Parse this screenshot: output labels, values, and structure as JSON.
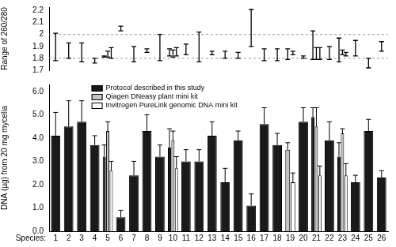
{
  "chart_data": [
    {
      "type": "range",
      "ylabel": "Range of 260/280",
      "categories": [
        null,
        null,
        null,
        null,
        null,
        null,
        null,
        null,
        null,
        null,
        null,
        null,
        null,
        null,
        null,
        null,
        null,
        null,
        null,
        null,
        null,
        null,
        null,
        null,
        null,
        null
      ],
      "series": [
        {
          "color": "#000000",
          "ranges": [
            [
              1.78,
              2.01
            ],
            [
              1.8,
              1.93
            ],
            [
              1.77,
              1.93
            ],
            [
              1.76,
              1.8
            ],
            [
              1.81,
              1.82
            ],
            [
              2.03,
              2.07
            ],
            [
              1.77,
              1.9
            ],
            [
              1.85,
              1.88
            ],
            [
              1.78,
              2.0
            ],
            [
              1.82,
              1.88
            ],
            [
              1.83,
              1.92
            ],
            [
              1.77,
              2.02
            ],
            [
              1.83,
              1.86
            ],
            [
              1.8,
              1.86
            ],
            [
              1.8,
              1.85
            ],
            [
              1.9,
              2.21
            ],
            [
              1.78,
              1.88
            ],
            [
              1.78,
              1.88
            ],
            null,
            [
              1.8,
              1.82
            ],
            [
              1.79,
              2.03
            ],
            [
              1.79,
              1.9
            ],
            [
              1.77,
              1.97
            ],
            [
              1.82,
              1.95
            ],
            [
              1.72,
              1.8
            ],
            [
              1.86,
              1.94
            ]
          ]
        },
        {
          "color": "#000000",
          "ranges": [
            null,
            null,
            null,
            null,
            [
              1.81,
              1.86
            ],
            null,
            null,
            null,
            null,
            [
              1.81,
              1.87
            ],
            null,
            null,
            null,
            null,
            null,
            null,
            null,
            null,
            [
              1.79,
              1.88
            ],
            null,
            [
              1.79,
              1.89
            ],
            null,
            [
              1.83,
              1.87
            ],
            null,
            null,
            null
          ]
        },
        {
          "color": "#000000",
          "ranges": [
            null,
            null,
            null,
            null,
            [
              1.8,
              1.89
            ],
            null,
            null,
            null,
            null,
            [
              1.82,
              1.89
            ],
            null,
            null,
            null,
            null,
            null,
            null,
            null,
            null,
            [
              1.83,
              1.86
            ],
            null,
            [
              1.79,
              1.89
            ],
            null,
            [
              1.82,
              1.85
            ],
            null,
            null,
            null
          ]
        }
      ],
      "reference_lines": [
        1.8,
        2.0
      ],
      "ylim": [
        1.7,
        2.23
      ],
      "yticks": [
        1.7,
        1.8,
        1.9,
        2.0,
        2.1,
        2.2
      ],
      "grid": false,
      "tick_labels": "y"
    },
    {
      "type": "bar",
      "xlabel": "Species:",
      "ylabel": "DNA (µg) from 20 mg mycelia",
      "categories": [
        "1",
        "2",
        "3",
        "4",
        "5",
        "6",
        "7",
        "8",
        "9",
        "10",
        "11",
        "12",
        "13",
        "14",
        "15",
        "16",
        "17",
        "18",
        "19",
        "20",
        "21",
        "22",
        "23",
        "24",
        "25",
        "26"
      ],
      "series": [
        {
          "name": "Protocol described in this study",
          "color": "#1a1a1a",
          "values": [
            4.1,
            4.5,
            4.7,
            3.7,
            3.2,
            0.6,
            2.4,
            4.3,
            3.2,
            3.6,
            3.0,
            3.0,
            4.1,
            2.1,
            3.9,
            1.1,
            4.6,
            3.7,
            null,
            4.7,
            4.9,
            3.9,
            3.2,
            2.1,
            4.3,
            2.3
          ],
          "errors": [
            1.0,
            1.1,
            0.9,
            0.4,
            0.5,
            0.3,
            0.6,
            0.7,
            0.5,
            0.8,
            0.5,
            0.5,
            0.6,
            0.6,
            0.4,
            0.5,
            0.7,
            0.5,
            null,
            0.6,
            0.4,
            0.8,
            0.6,
            0.3,
            0.5,
            0.3
          ]
        },
        {
          "name": "Qiagen DNeasy plant mini kit",
          "color": "#c4c4c4",
          "values": [
            null,
            null,
            null,
            null,
            4.3,
            null,
            null,
            null,
            null,
            3.9,
            null,
            null,
            null,
            null,
            null,
            null,
            null,
            null,
            3.5,
            null,
            4.5,
            null,
            4.2,
            null,
            null,
            null
          ],
          "errors": [
            null,
            null,
            null,
            null,
            0.4,
            null,
            null,
            null,
            null,
            0.4,
            null,
            null,
            null,
            null,
            null,
            null,
            null,
            null,
            0.3,
            null,
            0.8,
            null,
            0.2,
            null,
            null,
            null
          ]
        },
        {
          "name": "Invitrogen PureLink genomic DNA mini kit",
          "color": "#ffffff",
          "values": [
            null,
            null,
            null,
            null,
            2.6,
            null,
            null,
            null,
            null,
            2.7,
            null,
            null,
            null,
            null,
            null,
            null,
            null,
            null,
            2.1,
            null,
            2.4,
            null,
            2.4,
            null,
            null,
            null
          ],
          "errors": [
            null,
            null,
            null,
            null,
            0.4,
            null,
            null,
            null,
            null,
            0.5,
            null,
            null,
            null,
            null,
            null,
            null,
            null,
            null,
            0.4,
            null,
            0.4,
            null,
            0.5,
            null,
            null,
            null
          ]
        }
      ],
      "ylim": [
        0,
        6.3
      ],
      "yticks": [
        {
          "value": 0,
          "label": "0.0"
        },
        {
          "value": 1,
          "label": "1.0"
        },
        {
          "value": 2,
          "label": "2.0"
        },
        {
          "value": 3,
          "label": "3.0"
        },
        {
          "value": 4,
          "label": "4.0"
        },
        {
          "value": 5,
          "label": "5.0"
        },
        {
          "value": 6,
          "label": "6.0"
        }
      ],
      "grid": false,
      "legend": "upper left"
    }
  ]
}
